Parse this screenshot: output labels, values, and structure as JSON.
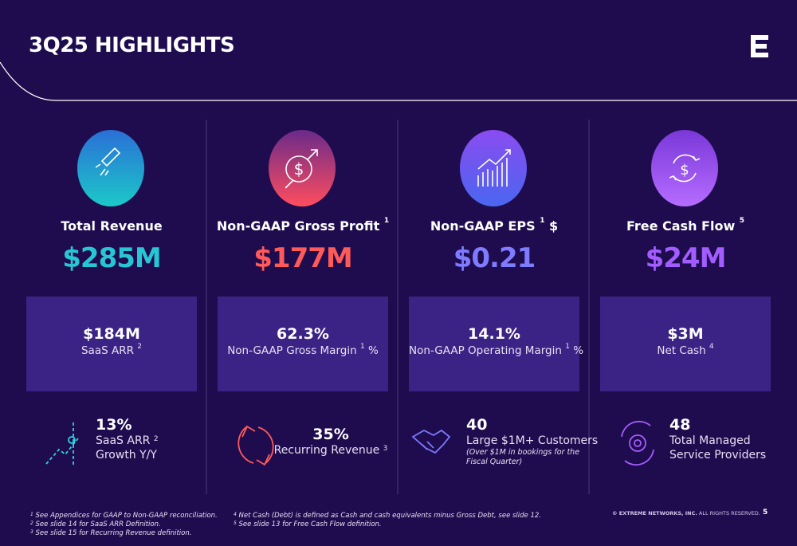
{
  "title": "3Q25 HIGHLIGHTS",
  "columns": [
    {
      "title": "Total Revenue",
      "value": "$285M",
      "box": {
        "value": "$184M",
        "label": "SaaS ARR",
        "label_sup": "2"
      },
      "stat": {
        "value": "13%",
        "lines": [
          "SaaS ARR",
          "Growth Y/Y"
        ],
        "line_sup": "2"
      }
    },
    {
      "title": "Non-GAAP Gross Profit",
      "title_sup": "1",
      "value": "$177M",
      "box": {
        "value": "62.3%",
        "label": "Non-GAAP Gross Margin",
        "label_sup": "1",
        "label_suffix": "%"
      },
      "stat": {
        "value": "35%",
        "lines": [
          "Recurring Revenue"
        ],
        "line_sup": "3"
      }
    },
    {
      "title": "Non-GAAP EPS",
      "title_sup": "1",
      "title_suffix": "$",
      "value": "$0.21",
      "box": {
        "value": "14.1%",
        "label": "Non-GAAP Operating Margin",
        "label_sup": "1",
        "label_suffix": "%"
      },
      "stat": {
        "value": "40",
        "lines": [
          "Large $1M+ Customers"
        ],
        "note": "(Over $1M in bookings for the Fiscal Quarter)"
      }
    },
    {
      "title": "Free Cash Flow",
      "title_sup": "5",
      "value": "$24M",
      "box": {
        "value": "$3M",
        "label": "Net Cash",
        "label_sup": "4"
      },
      "stat": {
        "value": "48",
        "lines": [
          "Total Managed",
          "Service Providers"
        ]
      }
    }
  ],
  "footnotes": [
    {
      "num": "1",
      "text": "See Appendices for GAAP to Non-GAAP reconciliation."
    },
    {
      "num": "2",
      "text": "See slide 14 for SaaS ARR Definition."
    },
    {
      "num": "3",
      "text": "See slide 15 for Recurring Revenue definition."
    },
    {
      "num": "4",
      "text": "Net Cash (Debt) is defined as Cash and cash equivalents minus Gross Debt, see slide 12."
    },
    {
      "num": "5",
      "text": "See slide 13 for Free Cash Flow definition."
    }
  ],
  "copyright": {
    "bold": "© EXTREME NETWORKS, INC.",
    "rest": "ALL RIGHTS RESERVED."
  },
  "page": "5"
}
